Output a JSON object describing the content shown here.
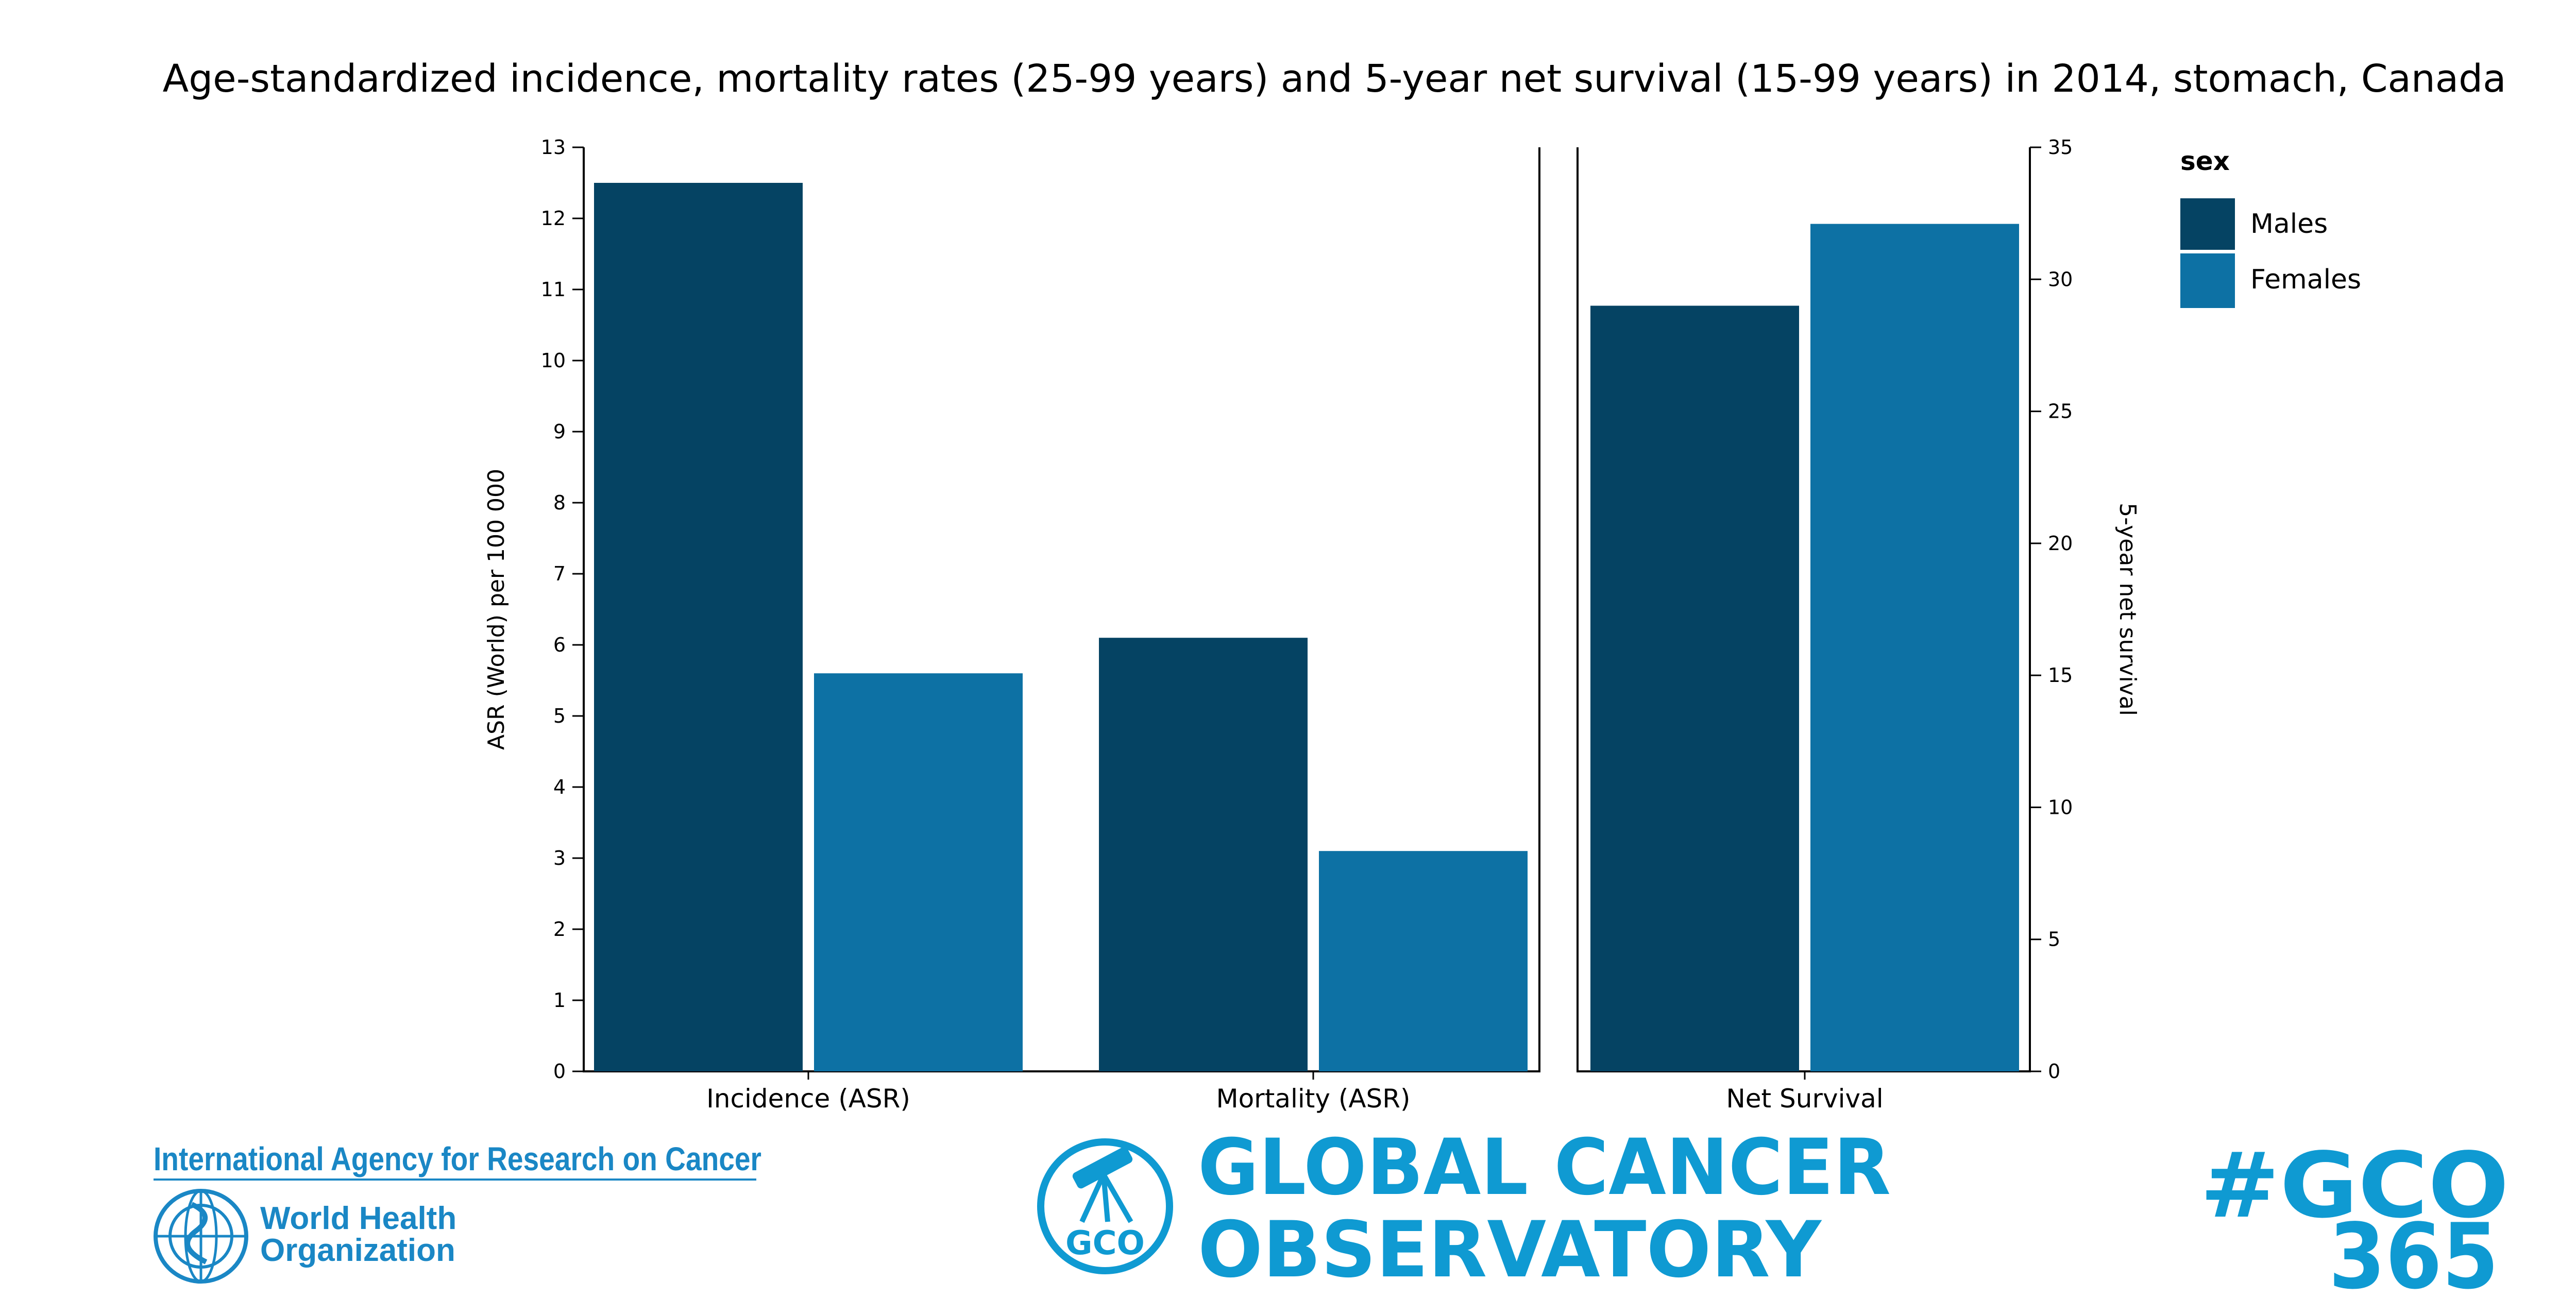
{
  "colors": {
    "males": "#054363",
    "females": "#0d71a4",
    "brand_blue": "#1a87c5",
    "gco_blue": "#0f9ad2"
  },
  "chart_data": [
    {
      "type": "bar",
      "title": "Age-standardized incidence, mortality rates (25-99 years) and 5-year net survival (15-99 years) in 2014, stomach, Canada",
      "categories": [
        "Incidence (ASR)",
        "Mortality (ASR)"
      ],
      "series": [
        {
          "name": "Males",
          "values": [
            12.5,
            6.1
          ]
        },
        {
          "name": "Females",
          "values": [
            5.6,
            3.1
          ]
        }
      ],
      "ylabel": "ASR (World) per 100 000",
      "ylim": [
        0,
        13
      ],
      "yticks": [
        "0",
        "1",
        "2",
        "3",
        "4",
        "5",
        "6",
        "7",
        "8",
        "9",
        "10",
        "11",
        "12",
        "13"
      ],
      "grid": false
    },
    {
      "type": "bar",
      "categories": [
        "Net Survival"
      ],
      "series": [
        {
          "name": "Males",
          "values": [
            29.0
          ]
        },
        {
          "name": "Females",
          "values": [
            32.1
          ]
        }
      ],
      "ylabel": "5-year net survival",
      "ylim": [
        0,
        35
      ],
      "yticks": [
        "0",
        "5",
        "10",
        "15",
        "20",
        "25",
        "30",
        "35"
      ],
      "grid": false
    }
  ],
  "legend": {
    "title": "sex",
    "items": [
      "Males",
      "Females"
    ],
    "placement": "top-right"
  },
  "footer": {
    "iarc": "International Agency for Research on Cancer",
    "who_line1": "World Health",
    "who_line2": "Organization",
    "gco_badge": "GCO",
    "gco_line1": "GLOBAL CANCER",
    "gco_line2": "OBSERVATORY",
    "hashtag_line1": "#GCO",
    "hashtag_line2": "365"
  }
}
